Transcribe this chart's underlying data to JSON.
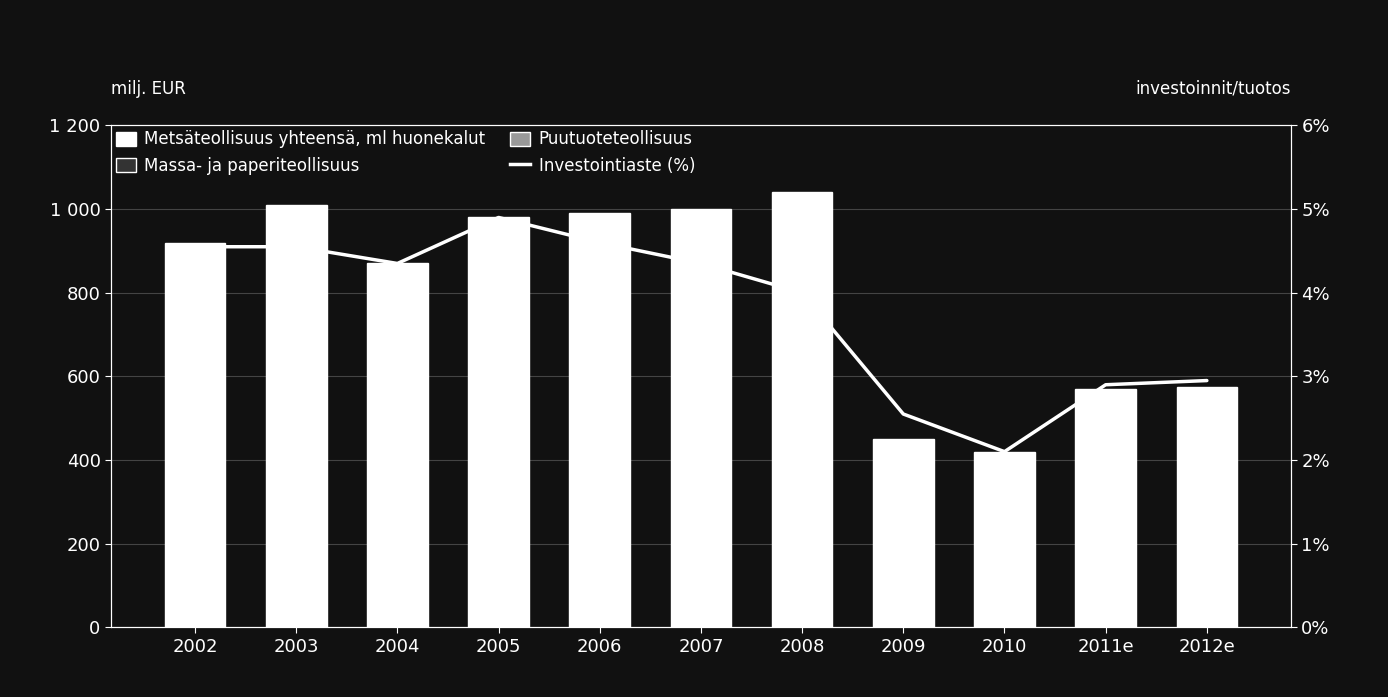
{
  "years": [
    "2002",
    "2003",
    "2004",
    "2005",
    "2006",
    "2007",
    "2008",
    "2009",
    "2010",
    "2011e",
    "2012e"
  ],
  "total_investments": [
    920,
    1010,
    870,
    980,
    990,
    1000,
    1040,
    450,
    420,
    570,
    575
  ],
  "investointiaste": [
    4.55,
    4.55,
    4.35,
    4.9,
    4.6,
    4.35,
    4.0,
    2.55,
    2.1,
    2.9,
    2.95
  ],
  "bar_color": "#ffffff",
  "line_color": "#ffffff",
  "background_color": "#111111",
  "grid_color": "#444444",
  "text_color": "#ffffff",
  "ylabel_left": "milj. EUR",
  "ylabel_right": "investoinnit/tuotos",
  "ylim_left": [
    0,
    1200
  ],
  "ylim_right": [
    0,
    6
  ],
  "yticks_left": [
    0,
    200,
    400,
    600,
    800,
    1000,
    1200
  ],
  "yticks_left_labels": [
    "0",
    "200",
    "400",
    "600",
    "800",
    "1 000",
    "1 200"
  ],
  "yticks_right": [
    0,
    1,
    2,
    3,
    4,
    5,
    6
  ],
  "yticks_right_labels": [
    "0%",
    "1%",
    "2%",
    "3%",
    "4%",
    "5%",
    "6%"
  ],
  "legend_label_total": "Metsäteollisuus yhteensä, ml huonekalut",
  "legend_label_massa": "Massa- ja paperiteollisuus",
  "legend_label_puutuote": "Puutuoteteollisuus",
  "legend_label_line": "Investointiaste (%)",
  "bar_width": 0.6,
  "fontsize_ticks": 13,
  "fontsize_legend": 12,
  "fontsize_ylabel": 12
}
